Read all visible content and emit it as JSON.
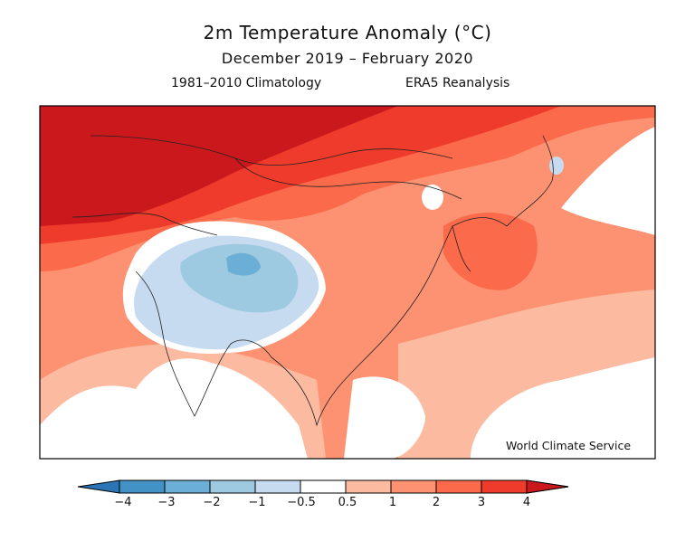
{
  "title": "2m Temperature Anomaly (°C)",
  "subtitle": "December 2019 – February 2020",
  "climatology": "1981–2010 Climatology",
  "dataset": "ERA5 Reanalysis",
  "credit": "World Climate Service",
  "map": {
    "region": "Asia",
    "variable": "2m temperature anomaly",
    "units": "°C"
  },
  "colorbar": {
    "ticks": [
      "−4",
      "−3",
      "−2",
      "−1",
      "−0.5",
      "0.5",
      "1",
      "2",
      "3",
      "4"
    ],
    "colors": {
      "below_-4": "#2b74b6",
      "-4_-3": "#4292c6",
      "-3_-2": "#6baed6",
      "-2_-1": "#9ecae1",
      "-1_-0.5": "#c6dbef",
      "-0.5_0.5": "#ffffff",
      "0.5_1": "#fcbba1",
      "1_2": "#fc9272",
      "2_3": "#fb6a4a",
      "3_4": "#ef3b2c",
      "above_4": "#cb181d"
    }
  }
}
